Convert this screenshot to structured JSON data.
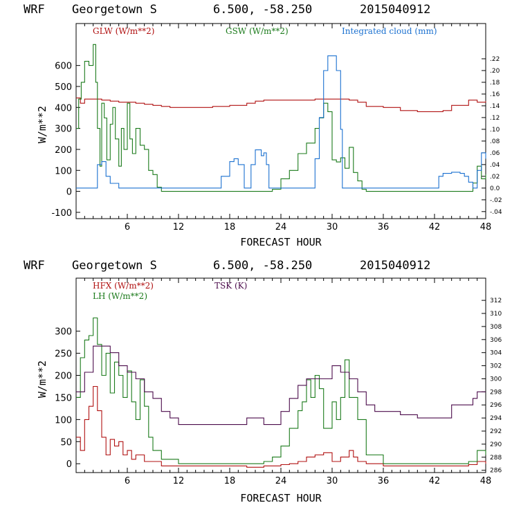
{
  "chart_data": [
    {
      "type": "line",
      "header": [
        "WRF",
        "Georgetown S",
        "6.500, -58.250",
        "2015040912"
      ],
      "xlabel": "FORECAST HOUR",
      "ylabel": "W/m**2",
      "xlim": [
        0,
        48
      ],
      "ylim": [
        -130,
        800
      ],
      "xticks": [
        6,
        12,
        18,
        24,
        30,
        36,
        42,
        48
      ],
      "yticks": [
        -100,
        0,
        100,
        200,
        300,
        400,
        500,
        600
      ],
      "y2lim": [
        -0.052,
        0.28
      ],
      "y2ticks": [
        -0.04,
        -0.02,
        0.0,
        0.02,
        0.04,
        0.06,
        0.08,
        0.1,
        0.12,
        0.14,
        0.16,
        0.18,
        0.2,
        0.22
      ],
      "y2ticklabels": [
        "-.04",
        "-.02",
        "0.0",
        ".02",
        ".04",
        ".06",
        ".08",
        ".10",
        ".12",
        ".14",
        ".16",
        ".18",
        ".20",
        ".22"
      ],
      "series": [
        {
          "name": "GLW",
          "label": "GLW (W/m**2)",
          "color": "#b01010",
          "axis": "left",
          "x": [
            0,
            0.5,
            1,
            2,
            3,
            4,
            5,
            6,
            7,
            8,
            9,
            10,
            11,
            12,
            14,
            16,
            18,
            20,
            21,
            22,
            24,
            26,
            28,
            30,
            31,
            32,
            33,
            34,
            36,
            38,
            40,
            42,
            43,
            44,
            46,
            47,
            48
          ],
          "values": [
            445,
            420,
            440,
            440,
            435,
            430,
            425,
            425,
            420,
            415,
            410,
            405,
            400,
            400,
            400,
            405,
            410,
            420,
            430,
            435,
            435,
            435,
            440,
            440,
            440,
            435,
            425,
            405,
            400,
            385,
            380,
            380,
            385,
            410,
            435,
            425,
            430
          ]
        },
        {
          "name": "GSW",
          "label": "GSW (W/m**2)",
          "color": "#1a7a1a",
          "axis": "left",
          "x": [
            0,
            0.3,
            0.6,
            1,
            1.5,
            2,
            2.3,
            2.5,
            2.8,
            3,
            3.3,
            3.6,
            4,
            4.3,
            4.6,
            5,
            5.3,
            5.6,
            6,
            6.3,
            6.6,
            7,
            7.5,
            8,
            8.5,
            9,
            9.5,
            10,
            11,
            12,
            14,
            16,
            18,
            20,
            21,
            22,
            23,
            24,
            25,
            26,
            27,
            28,
            28.5,
            29,
            29.5,
            30,
            30.5,
            31,
            31.5,
            32,
            32.5,
            33,
            33.5,
            34,
            35,
            36,
            40,
            44,
            46,
            46.5,
            47,
            47.5,
            48
          ],
          "values": [
            300,
            440,
            520,
            620,
            600,
            700,
            520,
            300,
            120,
            420,
            350,
            150,
            320,
            400,
            250,
            120,
            300,
            200,
            420,
            250,
            180,
            300,
            220,
            200,
            100,
            80,
            20,
            0,
            0,
            0,
            0,
            0,
            0,
            0,
            0,
            0,
            10,
            60,
            100,
            180,
            230,
            300,
            350,
            420,
            380,
            150,
            140,
            160,
            110,
            210,
            90,
            50,
            10,
            0,
            0,
            0,
            0,
            0,
            0,
            40,
            120,
            60,
            80
          ]
        },
        {
          "name": "Integrated cloud",
          "label": "Integrated cloud (mm)",
          "color": "#1a70d0",
          "axis": "right",
          "x": [
            0,
            2,
            2.5,
            3,
            3.5,
            4,
            5,
            16,
            17,
            18,
            18.5,
            19,
            19.7,
            20,
            20.5,
            21,
            21.7,
            22,
            22.3,
            22.6,
            23,
            23.5,
            24,
            25,
            26,
            27,
            27.5,
            28,
            28.5,
            29,
            29.5,
            30,
            30.5,
            31,
            31.2,
            31.5,
            32,
            36,
            42,
            42.5,
            43,
            44,
            45,
            45.5,
            46,
            46.5,
            47,
            47.5,
            48
          ],
          "values": [
            0,
            0,
            0.04,
            0.045,
            0.02,
            0.008,
            0.0,
            0.0,
            0.02,
            0.045,
            0.05,
            0.04,
            0.0,
            0.0,
            0.04,
            0.065,
            0.055,
            0.06,
            0.04,
            0.0,
            0.0,
            0.0,
            0.0,
            0.0,
            0.0,
            0.0,
            0.0,
            0.05,
            0.12,
            0.2,
            0.225,
            0.225,
            0.2,
            0.1,
            0.0,
            0.0,
            0.0,
            0.0,
            0.0,
            0.02,
            0.025,
            0.027,
            0.025,
            0.02,
            0.01,
            0.0,
            0.03,
            0.06,
            0.05
          ]
        }
      ]
    },
    {
      "type": "line",
      "header": [
        "WRF",
        "Georgetown S",
        "6.500, -58.250",
        "2015040912"
      ],
      "xlabel": "FORECAST HOUR",
      "ylabel": "W/m**2",
      "xlim": [
        0,
        48
      ],
      "ylim": [
        -20,
        420
      ],
      "xticks": [
        6,
        12,
        18,
        24,
        30,
        36,
        42,
        48
      ],
      "yticks": [
        0,
        50,
        100,
        150,
        200,
        250,
        300
      ],
      "y2lim": [
        285.65,
        315.4
      ],
      "y2ticks": [
        286,
        288,
        290,
        292,
        294,
        296,
        298,
        300,
        302,
        304,
        306,
        308,
        310,
        312
      ],
      "y2ticklabels": [
        "286",
        "288",
        "290",
        "292",
        "294",
        "296",
        "298",
        "300",
        "302",
        "304",
        "306",
        "308",
        "310",
        "312"
      ],
      "series": [
        {
          "name": "HFX",
          "label": "HFX (W/m**2)",
          "color": "#b01010",
          "axis": "left",
          "x": [
            0,
            0.5,
            1,
            1.5,
            2,
            2.5,
            3,
            3.5,
            4,
            4.5,
            5,
            5.5,
            6,
            6.5,
            7,
            8,
            10,
            12,
            18,
            20,
            22,
            24,
            25,
            26,
            27,
            28,
            29,
            30,
            31,
            32,
            32.5,
            33,
            34,
            36,
            40,
            44,
            46,
            47,
            48
          ],
          "values": [
            60,
            30,
            100,
            130,
            175,
            120,
            60,
            20,
            55,
            40,
            50,
            20,
            30,
            10,
            20,
            5,
            -5,
            -5,
            -5,
            -8,
            -5,
            -2,
            0,
            5,
            15,
            20,
            25,
            5,
            15,
            30,
            15,
            5,
            0,
            -5,
            -5,
            -5,
            -2,
            5,
            0
          ]
        },
        {
          "name": "LH",
          "label": "LH (W/m**2)",
          "color": "#1a7a1a",
          "axis": "left",
          "x": [
            0,
            0.5,
            1,
            1.5,
            2,
            2.5,
            3,
            3.5,
            4,
            4.5,
            5,
            5.5,
            6,
            6.5,
            7,
            7.5,
            8,
            8.5,
            9,
            10,
            12,
            16,
            20,
            22,
            23,
            24,
            25,
            26,
            26.5,
            27,
            27.5,
            28,
            28.5,
            29,
            30,
            30.5,
            31,
            31.5,
            32,
            33,
            34,
            36,
            40,
            44,
            46,
            47,
            48
          ],
          "values": [
            150,
            240,
            280,
            290,
            330,
            270,
            200,
            250,
            160,
            230,
            200,
            150,
            210,
            140,
            100,
            190,
            130,
            60,
            30,
            10,
            0,
            0,
            0,
            5,
            15,
            40,
            80,
            120,
            140,
            190,
            150,
            200,
            170,
            80,
            140,
            100,
            150,
            235,
            150,
            100,
            20,
            0,
            0,
            0,
            5,
            30,
            20
          ]
        },
        {
          "name": "TSK",
          "label": "TSK (K)",
          "color": "#4a0a4a",
          "axis": "right",
          "x": [
            0,
            1,
            2,
            3,
            4,
            5,
            6,
            7,
            8,
            9,
            10,
            11,
            12,
            14,
            16,
            18,
            20,
            22,
            24,
            25,
            26,
            27,
            28,
            29,
            30,
            31,
            32,
            33,
            34,
            35,
            36,
            38,
            40,
            42,
            43,
            44,
            45,
            46,
            46.5,
            47,
            48
          ],
          "values": [
            298,
            301,
            305,
            305,
            304,
            302,
            301,
            300,
            298,
            297,
            295,
            294,
            293,
            293,
            293,
            293,
            294,
            293,
            295,
            297,
            299,
            300,
            300,
            300,
            302,
            301,
            300,
            298,
            296,
            295,
            295,
            294.5,
            294,
            294,
            294,
            296,
            296,
            296,
            297,
            298,
            298
          ]
        }
      ]
    }
  ]
}
